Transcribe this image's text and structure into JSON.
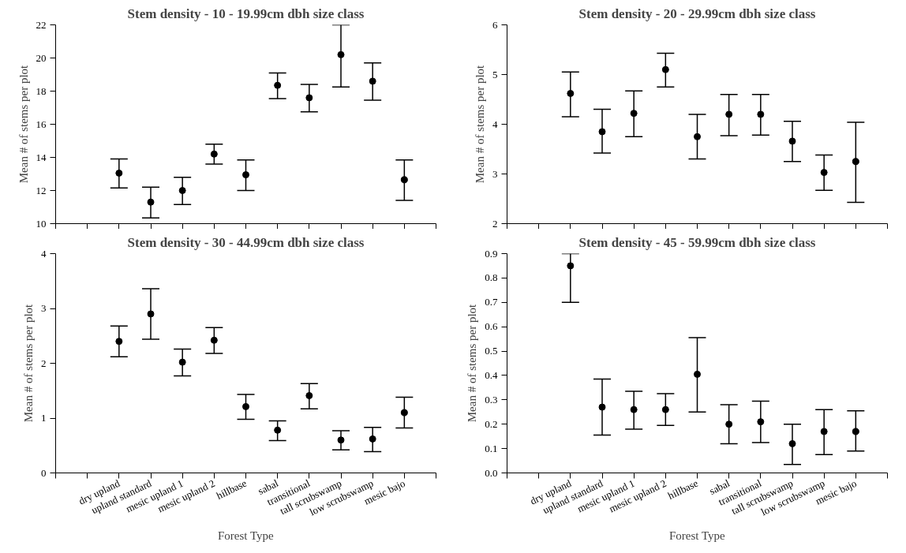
{
  "chart_data": [
    {
      "type": "scatter",
      "title": "Stem density - 10 - 19.99cm dbh size class",
      "ylabel": "Mean # of stems per plot",
      "categories": [
        null,
        null,
        null,
        null,
        null,
        null,
        null,
        null,
        null,
        null,
        null,
        null,
        null
      ],
      "values": [
        null,
        null,
        13.05,
        11.3,
        12.0,
        14.2,
        12.95,
        18.35,
        17.6,
        20.2,
        18.6,
        12.65,
        null
      ],
      "errors": [
        null,
        null,
        [
          12.15,
          13.9
        ],
        [
          10.35,
          12.2
        ],
        [
          11.15,
          12.8
        ],
        [
          13.6,
          14.8
        ],
        [
          12.0,
          13.85
        ],
        [
          17.55,
          19.1
        ],
        [
          16.75,
          18.4
        ],
        [
          18.25,
          22
        ],
        [
          17.45,
          19.7
        ],
        [
          11.4,
          13.85
        ],
        null
      ],
      "color": "#000000",
      "marker": "circle",
      "ylim": [
        10,
        22
      ],
      "yticks": [
        10,
        12,
        14,
        16,
        18,
        20,
        22
      ],
      "tick_labels": "y",
      "grid": false
    },
    {
      "type": "scatter",
      "title": "Stem density - 20 - 29.99cm dbh size class",
      "ylabel": "Mean # of stems per plot",
      "categories": [
        null,
        null,
        null,
        null,
        null,
        null,
        null,
        null,
        null,
        null,
        null,
        null,
        null
      ],
      "values": [
        null,
        null,
        4.62,
        3.85,
        4.22,
        5.1,
        3.75,
        4.2,
        4.2,
        3.66,
        3.03,
        3.25,
        null
      ],
      "errors": [
        null,
        null,
        [
          4.15,
          5.05
        ],
        [
          3.42,
          4.3
        ],
        [
          3.75,
          4.67
        ],
        [
          4.75,
          5.43
        ],
        [
          3.3,
          4.2
        ],
        [
          3.77,
          4.6
        ],
        [
          3.78,
          4.6
        ],
        [
          3.25,
          4.06
        ],
        [
          2.67,
          3.38
        ],
        [
          2.43,
          4.04
        ],
        null
      ],
      "color": "#000000",
      "marker": "circle",
      "ylim": [
        2,
        6
      ],
      "yticks": [
        2,
        3,
        4,
        5,
        6
      ],
      "tick_labels": "y",
      "grid": false
    },
    {
      "type": "scatter",
      "title": "Stem density - 30 - 44.99cm dbh size class",
      "xlabel": "Forest Type",
      "ylabel": "Mean # of stems per plot",
      "categories": [
        "dry upland",
        "upland standard",
        "mesic upland 1",
        "mesic upland 2",
        "hillbase",
        "sabal",
        "transitional",
        "tall scrubswamp",
        "low scrubswamp",
        "mesic bajo"
      ],
      "values": [
        2.4,
        2.9,
        2.02,
        2.42,
        1.21,
        0.78,
        1.41,
        0.6,
        0.62,
        1.1
      ],
      "errors": [
        [
          2.12,
          2.68
        ],
        [
          2.44,
          3.36
        ],
        [
          1.77,
          2.26
        ],
        [
          2.18,
          2.65
        ],
        [
          0.98,
          1.43
        ],
        [
          0.59,
          0.95
        ],
        [
          1.17,
          1.63
        ],
        [
          0.42,
          0.77
        ],
        [
          0.39,
          0.83
        ],
        [
          0.82,
          1.38
        ]
      ],
      "color": "#000000",
      "marker": "circle",
      "ylim": [
        0,
        4
      ],
      "yticks": [
        0,
        1,
        2,
        3,
        4
      ],
      "grid": false
    },
    {
      "type": "scatter",
      "title": "Stem density - 45 - 59.99cm dbh size class",
      "xlabel": "Forest Type",
      "ylabel": "Mean # of stems per plot",
      "categories": [
        "dry upland",
        "upland standard",
        "mesic upland 1",
        "mesic upland 2",
        "hillbase",
        "sabal",
        "transitional",
        "tall scrubswamp",
        "low scrubswamp",
        "mesic bajo"
      ],
      "values": [
        0.85,
        0.27,
        0.26,
        0.26,
        0.405,
        0.2,
        0.21,
        0.12,
        0.17,
        0.17
      ],
      "errors": [
        [
          0.7,
          0.9
        ],
        [
          0.155,
          0.385
        ],
        [
          0.18,
          0.335
        ],
        [
          0.195,
          0.325
        ],
        [
          0.25,
          0.555
        ],
        [
          0.12,
          0.28
        ],
        [
          0.125,
          0.295
        ],
        [
          0.035,
          0.2
        ],
        [
          0.075,
          0.26
        ],
        [
          0.09,
          0.255
        ]
      ],
      "color": "#000000",
      "marker": "circle",
      "ylim": [
        0,
        0.9
      ],
      "yticks": [
        {
          "value": 0,
          "label": "0.0"
        },
        0.1,
        0.2,
        0.3,
        0.4,
        0.5,
        0.6,
        0.7,
        0.8,
        0.9
      ],
      "grid": false
    }
  ]
}
